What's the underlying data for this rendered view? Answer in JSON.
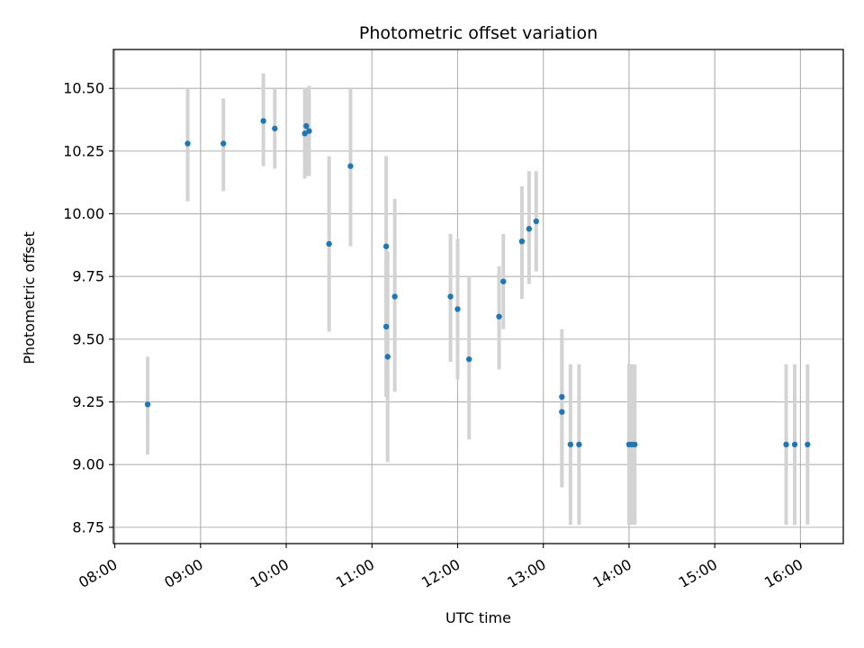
{
  "chart_data": {
    "type": "scatter",
    "title": "Photometric offset variation",
    "xlabel": "UTC time",
    "ylabel": "Photometric offset",
    "x_axis": {
      "kind": "time",
      "range": [
        "07:59",
        "16:30"
      ],
      "ticks": [
        "08:00",
        "09:00",
        "10:00",
        "11:00",
        "12:00",
        "13:00",
        "14:00",
        "15:00",
        "16:00"
      ]
    },
    "y_axis": {
      "range": [
        8.685,
        10.655
      ],
      "ticks": [
        8.75,
        9.0,
        9.25,
        9.5,
        9.75,
        10.0,
        10.25,
        10.5
      ],
      "tick_labels": [
        "8.75",
        "9.00",
        "9.25",
        "9.50",
        "9.75",
        "10.00",
        "10.25",
        "10.50"
      ]
    },
    "grid": true,
    "colors": {
      "point": "#1f77b4",
      "error_bar": "#d3d3d3",
      "grid": "#b0b0b0"
    },
    "series": [
      {
        "points": [
          {
            "x": "08:23",
            "y": 9.24,
            "ylo": 9.04,
            "yhi": 9.43
          },
          {
            "x": "08:51",
            "y": 10.28,
            "ylo": 10.05,
            "yhi": 10.5
          },
          {
            "x": "09:16",
            "y": 10.28,
            "ylo": 10.09,
            "yhi": 10.46
          },
          {
            "x": "09:44",
            "y": 10.37,
            "ylo": 10.19,
            "yhi": 10.56
          },
          {
            "x": "09:52",
            "y": 10.34,
            "ylo": 10.18,
            "yhi": 10.5
          },
          {
            "x": "10:13",
            "y": 10.32,
            "ylo": 10.14,
            "yhi": 10.5
          },
          {
            "x": "10:14",
            "y": 10.35,
            "ylo": 10.15,
            "yhi": 10.5
          },
          {
            "x": "10:16",
            "y": 10.33,
            "ylo": 10.15,
            "yhi": 10.51
          },
          {
            "x": "10:30",
            "y": 9.88,
            "ylo": 9.53,
            "yhi": 10.23
          },
          {
            "x": "10:45",
            "y": 10.19,
            "ylo": 9.87,
            "yhi": 10.5
          },
          {
            "x": "11:10",
            "y": 9.87,
            "ylo": 9.5,
            "yhi": 10.23
          },
          {
            "x": "11:10",
            "y": 9.55,
            "ylo": 9.27,
            "yhi": 9.82
          },
          {
            "x": "11:11",
            "y": 9.43,
            "ylo": 9.01,
            "yhi": 9.85
          },
          {
            "x": "11:16",
            "y": 9.67,
            "ylo": 9.29,
            "yhi": 10.06
          },
          {
            "x": "11:55",
            "y": 9.67,
            "ylo": 9.41,
            "yhi": 9.92
          },
          {
            "x": "12:00",
            "y": 9.62,
            "ylo": 9.34,
            "yhi": 9.9
          },
          {
            "x": "12:08",
            "y": 9.42,
            "ylo": 9.1,
            "yhi": 9.75
          },
          {
            "x": "12:29",
            "y": 9.59,
            "ylo": 9.38,
            "yhi": 9.79
          },
          {
            "x": "12:32",
            "y": 9.73,
            "ylo": 9.54,
            "yhi": 9.92
          },
          {
            "x": "12:45",
            "y": 9.89,
            "ylo": 9.66,
            "yhi": 10.11
          },
          {
            "x": "12:50",
            "y": 9.94,
            "ylo": 9.72,
            "yhi": 10.17
          },
          {
            "x": "12:55",
            "y": 9.97,
            "ylo": 9.77,
            "yhi": 10.17
          },
          {
            "x": "13:13",
            "y": 9.27,
            "ylo": 8.91,
            "yhi": 9.54
          },
          {
            "x": "13:13",
            "y": 9.21,
            "ylo": 8.91,
            "yhi": 9.5
          },
          {
            "x": "13:19",
            "y": 9.08,
            "ylo": 8.76,
            "yhi": 9.4
          },
          {
            "x": "13:25",
            "y": 9.08,
            "ylo": 8.76,
            "yhi": 9.4
          },
          {
            "x": "14:00",
            "y": 9.08,
            "ylo": 8.76,
            "yhi": 9.4
          },
          {
            "x": "14:02",
            "y": 9.08,
            "ylo": 8.76,
            "yhi": 9.4
          },
          {
            "x": "14:04",
            "y": 9.08,
            "ylo": 8.76,
            "yhi": 9.4
          },
          {
            "x": "15:50",
            "y": 9.08,
            "ylo": 8.76,
            "yhi": 9.4
          },
          {
            "x": "15:56",
            "y": 9.08,
            "ylo": 8.76,
            "yhi": 9.4
          },
          {
            "x": "16:05",
            "y": 9.08,
            "ylo": 8.76,
            "yhi": 9.4
          }
        ]
      }
    ]
  }
}
